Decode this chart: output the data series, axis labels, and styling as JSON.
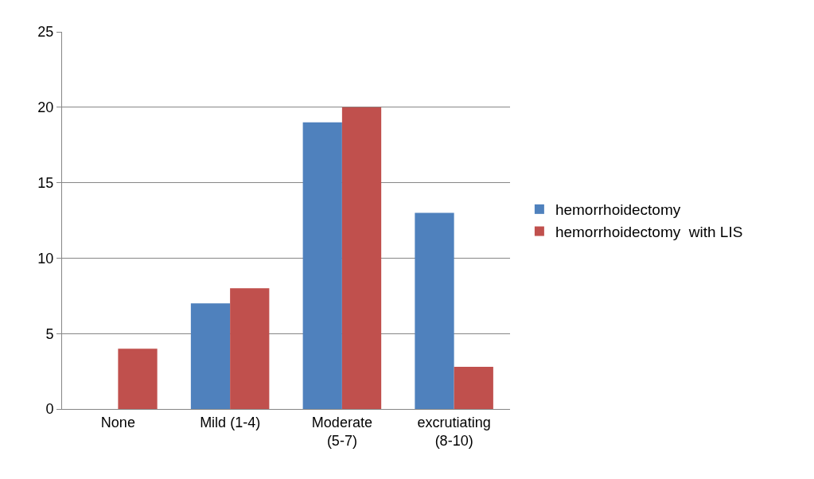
{
  "chart_data": {
    "type": "bar",
    "categories": [
      "None",
      "Mild (1-4)",
      "Moderate (5-7)",
      "excrutiating (8-10)"
    ],
    "series": [
      {
        "name": "hemorrhoidectomy",
        "color": "#4f81bd",
        "values": [
          null,
          7,
          19,
          13
        ]
      },
      {
        "name": "hemorrhoidectomy  with LIS",
        "color": "#c0504d",
        "values": [
          4,
          8,
          20,
          2.8
        ]
      }
    ],
    "ylim": [
      0,
      25
    ],
    "yticks": [
      0,
      5,
      10,
      15,
      20,
      25
    ],
    "grid": "y",
    "legend": "right"
  }
}
